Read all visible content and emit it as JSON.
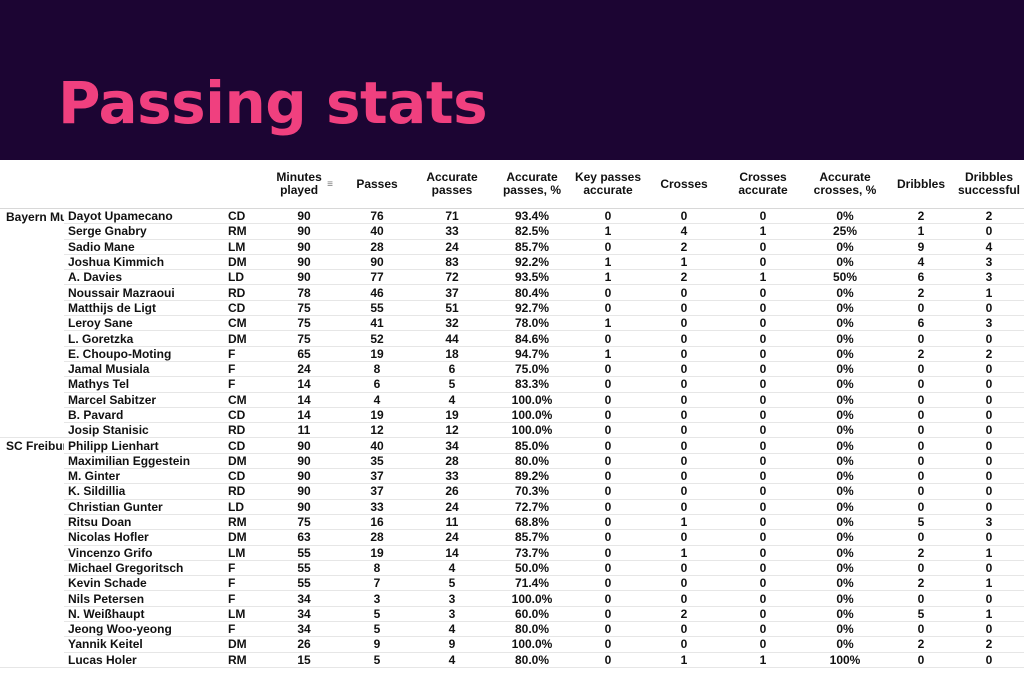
{
  "title": "Passing stats",
  "columns": {
    "minutes": "Minutes played",
    "passes": "Passes",
    "accurate_passes": "Accurate passes",
    "accurate_passes_pct": "Accurate passes, %",
    "key_passes": "Key passes accurate",
    "crosses": "Crosses",
    "crosses_accurate": "Crosses accurate",
    "accurate_crosses_pct": "Accurate crosses, %",
    "dribbles": "Dribbles",
    "dribbles_successful": "Dribbles successful"
  },
  "teams": [
    {
      "name": "Bayern Munich",
      "players": [
        [
          "Dayot Upamecano",
          "CD",
          "90",
          "76",
          "71",
          "93.4%",
          "0",
          "0",
          "0",
          "0%",
          "2",
          "2"
        ],
        [
          "Serge Gnabry",
          "RM",
          "90",
          "40",
          "33",
          "82.5%",
          "1",
          "4",
          "1",
          "25%",
          "1",
          "0"
        ],
        [
          "Sadio Mane",
          "LM",
          "90",
          "28",
          "24",
          "85.7%",
          "0",
          "2",
          "0",
          "0%",
          "9",
          "4"
        ],
        [
          "Joshua Kimmich",
          "DM",
          "90",
          "90",
          "83",
          "92.2%",
          "1",
          "1",
          "0",
          "0%",
          "4",
          "3"
        ],
        [
          "A. Davies",
          "LD",
          "90",
          "77",
          "72",
          "93.5%",
          "1",
          "2",
          "1",
          "50%",
          "6",
          "3"
        ],
        [
          "Noussair Mazraoui",
          "RD",
          "78",
          "46",
          "37",
          "80.4%",
          "0",
          "0",
          "0",
          "0%",
          "2",
          "1"
        ],
        [
          "Matthijs de Ligt",
          "CD",
          "75",
          "55",
          "51",
          "92.7%",
          "0",
          "0",
          "0",
          "0%",
          "0",
          "0"
        ],
        [
          "Leroy Sane",
          "CM",
          "75",
          "41",
          "32",
          "78.0%",
          "1",
          "0",
          "0",
          "0%",
          "6",
          "3"
        ],
        [
          "L. Goretzka",
          "DM",
          "75",
          "52",
          "44",
          "84.6%",
          "0",
          "0",
          "0",
          "0%",
          "0",
          "0"
        ],
        [
          "E. Choupo-Moting",
          "F",
          "65",
          "19",
          "18",
          "94.7%",
          "1",
          "0",
          "0",
          "0%",
          "2",
          "2"
        ],
        [
          "Jamal Musiala",
          "F",
          "24",
          "8",
          "6",
          "75.0%",
          "0",
          "0",
          "0",
          "0%",
          "0",
          "0"
        ],
        [
          "Mathys Tel",
          "F",
          "14",
          "6",
          "5",
          "83.3%",
          "0",
          "0",
          "0",
          "0%",
          "0",
          "0"
        ],
        [
          "Marcel Sabitzer",
          "CM",
          "14",
          "4",
          "4",
          "100.0%",
          "0",
          "0",
          "0",
          "0%",
          "0",
          "0"
        ],
        [
          "B. Pavard",
          "CD",
          "14",
          "19",
          "19",
          "100.0%",
          "0",
          "0",
          "0",
          "0%",
          "0",
          "0"
        ],
        [
          "Josip Stanisic",
          "RD",
          "11",
          "12",
          "12",
          "100.0%",
          "0",
          "0",
          "0",
          "0%",
          "0",
          "0"
        ]
      ]
    },
    {
      "name": "SC Freiburg",
      "players": [
        [
          "Philipp Lienhart",
          "CD",
          "90",
          "40",
          "34",
          "85.0%",
          "0",
          "0",
          "0",
          "0%",
          "0",
          "0"
        ],
        [
          "Maximilian Eggestein",
          "DM",
          "90",
          "35",
          "28",
          "80.0%",
          "0",
          "0",
          "0",
          "0%",
          "0",
          "0"
        ],
        [
          "M. Ginter",
          "CD",
          "90",
          "37",
          "33",
          "89.2%",
          "0",
          "0",
          "0",
          "0%",
          "0",
          "0"
        ],
        [
          "K. Sildillia",
          "RD",
          "90",
          "37",
          "26",
          "70.3%",
          "0",
          "0",
          "0",
          "0%",
          "0",
          "0"
        ],
        [
          "Christian Gunter",
          "LD",
          "90",
          "33",
          "24",
          "72.7%",
          "0",
          "0",
          "0",
          "0%",
          "0",
          "0"
        ],
        [
          "Ritsu Doan",
          "RM",
          "75",
          "16",
          "11",
          "68.8%",
          "0",
          "1",
          "0",
          "0%",
          "5",
          "3"
        ],
        [
          "Nicolas Hofler",
          "DM",
          "63",
          "28",
          "24",
          "85.7%",
          "0",
          "0",
          "0",
          "0%",
          "0",
          "0"
        ],
        [
          "Vincenzo Grifo",
          "LM",
          "55",
          "19",
          "14",
          "73.7%",
          "0",
          "1",
          "0",
          "0%",
          "2",
          "1"
        ],
        [
          "Michael Gregoritsch",
          "F",
          "55",
          "8",
          "4",
          "50.0%",
          "0",
          "0",
          "0",
          "0%",
          "0",
          "0"
        ],
        [
          "Kevin Schade",
          "F",
          "55",
          "7",
          "5",
          "71.4%",
          "0",
          "0",
          "0",
          "0%",
          "2",
          "1"
        ],
        [
          "Nils Petersen",
          "F",
          "34",
          "3",
          "3",
          "100.0%",
          "0",
          "0",
          "0",
          "0%",
          "0",
          "0"
        ],
        [
          "N. Weißhaupt",
          "LM",
          "34",
          "5",
          "3",
          "60.0%",
          "0",
          "2",
          "0",
          "0%",
          "5",
          "1"
        ],
        [
          "Jeong Woo-yeong",
          "F",
          "34",
          "5",
          "4",
          "80.0%",
          "0",
          "0",
          "0",
          "0%",
          "0",
          "0"
        ],
        [
          "Yannik Keitel",
          "DM",
          "26",
          "9",
          "9",
          "100.0%",
          "0",
          "0",
          "0",
          "0%",
          "2",
          "2"
        ],
        [
          "Lucas Holer",
          "RM",
          "15",
          "5",
          "4",
          "80.0%",
          "0",
          "1",
          "1",
          "100%",
          "0",
          "0"
        ]
      ]
    }
  ],
  "icons": {
    "sort": "sort-icon"
  },
  "colors": {
    "background": "#1c0533",
    "title": "#f0407f",
    "table_bg": "#ffffff"
  }
}
